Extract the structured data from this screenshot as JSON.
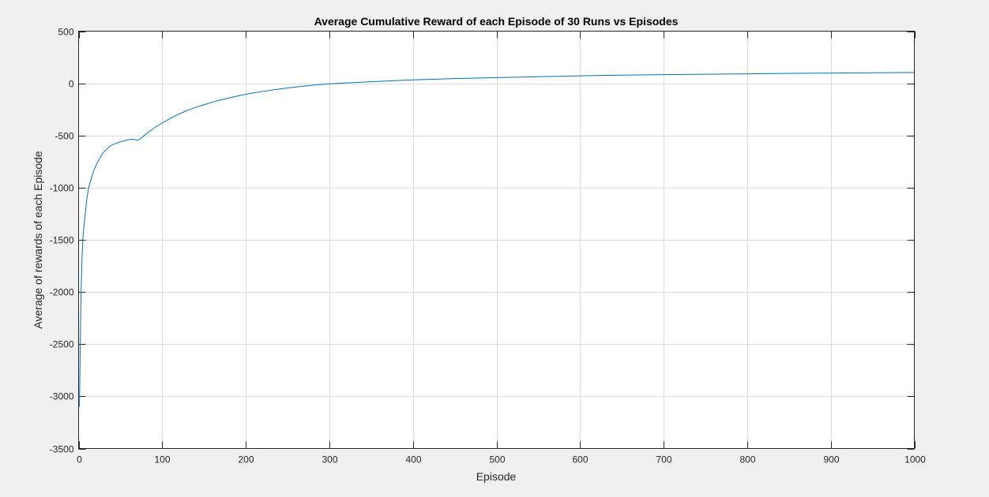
{
  "chart_data": {
    "type": "line",
    "title": "Average Cumulative Reward of each Episode of 30 Runs vs Episodes",
    "xlabel": "Episode",
    "ylabel": "Average of rewards of each Episode",
    "xlim": [
      0,
      1000
    ],
    "ylim": [
      -3500,
      500
    ],
    "xticks": [
      0,
      100,
      200,
      300,
      400,
      500,
      600,
      700,
      800,
      900,
      1000
    ],
    "yticks": [
      -3500,
      -3000,
      -2500,
      -2000,
      -1500,
      -1000,
      -500,
      0,
      500
    ],
    "xtick_labels": [
      "0",
      "100",
      "200",
      "300",
      "400",
      "500",
      "600",
      "700",
      "800",
      "900",
      "1000"
    ],
    "ytick_labels": [
      "-3500",
      "-3000",
      "-2500",
      "-2000",
      "-1500",
      "-1000",
      "-500",
      "0",
      "500"
    ],
    "grid": true,
    "colors": {
      "series": "#0072bd",
      "grid": "#dcdcdc",
      "axes": "#262626",
      "background": "#f0f0f0",
      "plot_background": "#ffffff"
    },
    "series": [
      {
        "x": [
          1,
          2,
          3,
          4,
          5,
          6,
          8,
          10,
          12,
          15,
          18,
          20,
          25,
          30,
          35,
          40,
          45,
          50,
          55,
          60,
          65,
          70,
          72,
          75,
          80,
          90,
          100,
          110,
          120,
          130,
          140,
          150,
          160,
          170,
          180,
          190,
          200,
          220,
          240,
          260,
          280,
          300,
          350,
          400,
          450,
          500,
          550,
          600,
          650,
          700,
          750,
          800,
          850,
          900,
          950,
          1000
        ],
        "values": [
          -3100,
          -2500,
          -2000,
          -1700,
          -1500,
          -1400,
          -1250,
          -1100,
          -1000,
          -920,
          -840,
          -800,
          -720,
          -660,
          -620,
          -590,
          -575,
          -560,
          -550,
          -540,
          -535,
          -545,
          -540,
          -525,
          -490,
          -430,
          -380,
          -335,
          -295,
          -260,
          -230,
          -205,
          -180,
          -160,
          -140,
          -122,
          -105,
          -78,
          -55,
          -35,
          -18,
          -5,
          15,
          33,
          45,
          55,
          63,
          72,
          78,
          83,
          87,
          91,
          95,
          98,
          101,
          104
        ]
      }
    ]
  }
}
